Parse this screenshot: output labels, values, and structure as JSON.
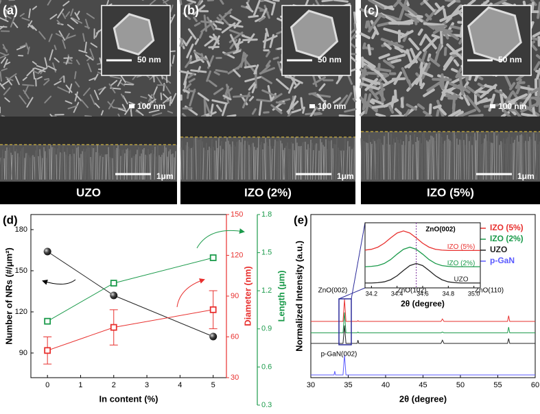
{
  "figure": {
    "panels": [
      {
        "label": "(a)",
        "caption": "UZO",
        "inset_scale": "50 nm",
        "top_scale": "100 nm",
        "side_scale": "1μm"
      },
      {
        "label": "(b)",
        "caption": "IZO (2%)",
        "inset_scale": "50 nm",
        "top_scale": "100 nm",
        "side_scale": "1μm"
      },
      {
        "label": "(c)",
        "caption": "IZO (5%)",
        "inset_scale": "50 nm",
        "top_scale": "100 nm",
        "side_scale": "1μm"
      }
    ]
  },
  "chart_data": [
    {
      "type": "line",
      "label": "(d)",
      "xlabel": "In content (%)",
      "ylabel": "Number of NRs (#/μm²)",
      "y2label": "Diameter (nm)",
      "y3label": "Length (μm)",
      "x": [
        0,
        2,
        5
      ],
      "xlim": [
        -0.5,
        5.4
      ],
      "xticks": [
        0,
        1,
        2,
        3,
        4,
        5
      ],
      "ylim": [
        72,
        191
      ],
      "yticks": [
        90,
        120,
        150,
        180
      ],
      "y2lim": [
        30,
        150
      ],
      "y2ticks": [
        30,
        60,
        90,
        120,
        150
      ],
      "y3lim": [
        0.3,
        1.8
      ],
      "y3ticks": [
        0.3,
        0.6,
        0.9,
        1.2,
        1.5,
        1.8
      ],
      "series": [
        {
          "color": "#222222",
          "marker": "sphere",
          "values": [
            164,
            132,
            102
          ]
        },
        {
          "color": "#e8302e",
          "marker": "square",
          "axis": "y2",
          "values": [
            50,
            67,
            80
          ],
          "errors": [
            10,
            13,
            14
          ]
        },
        {
          "color": "#1a9a4a",
          "marker": "square",
          "axis": "y3",
          "values": [
            0.96,
            1.26,
            1.46
          ]
        }
      ]
    },
    {
      "type": "line",
      "label": "(e)",
      "xlabel": "2θ (degree)",
      "ylabel": "Normalized Intensity (a.u.)",
      "x": [
        30,
        33.1,
        33.2,
        33.3,
        34.3,
        34.5,
        34.7,
        36.2,
        36.3,
        36.4,
        47.4,
        47.6,
        47.8,
        56.3,
        56.45,
        56.6,
        60
      ],
      "xlim": [
        30,
        60
      ],
      "xticks": [
        30,
        35,
        40,
        45,
        50,
        55,
        60
      ],
      "ylim": [
        0,
        10
      ],
      "legend": "upper right",
      "series": [
        {
          "name": "IZO (5%)",
          "color": "#e8302e",
          "values": [
            3.45,
            3.45,
            3.45,
            3.45,
            3.45,
            4.8,
            3.45,
            3.45,
            3.5,
            3.45,
            3.45,
            3.6,
            3.45,
            3.45,
            3.8,
            3.45,
            3.45
          ]
        },
        {
          "name": "IZO (2%)",
          "color": "#1a9a4a",
          "values": [
            2.75,
            2.75,
            2.75,
            2.75,
            2.75,
            4.0,
            2.75,
            2.75,
            2.8,
            2.75,
            2.75,
            2.8,
            2.75,
            2.75,
            3.1,
            2.75,
            2.75
          ]
        },
        {
          "name": "UZO",
          "color": "#222222",
          "values": [
            2.1,
            2.1,
            2.1,
            2.1,
            2.1,
            3.2,
            2.1,
            2.1,
            2.3,
            2.1,
            2.1,
            2.3,
            2.1,
            2.1,
            2.4,
            2.1,
            2.1
          ]
        },
        {
          "name": "p-GaN",
          "color": "#5a5aff",
          "values": [
            0.17,
            0.17,
            0.4,
            0.17,
            0.17,
            1.4,
            0.17,
            0.17,
            0.17,
            0.17,
            0.17,
            0.17,
            0.17,
            0.17,
            0.17,
            0.17,
            0.17
          ]
        }
      ],
      "annotations": [
        "ZnO(002)",
        "ZnO(102)",
        "ZnO(110)",
        "p-GaN(002)"
      ]
    },
    {
      "type": "line",
      "title": "ZnO(002)",
      "xlabel": "2θ (degree)",
      "x": [
        34.15,
        34.2,
        34.25,
        34.3,
        34.35,
        34.4,
        34.45,
        34.5,
        34.55,
        34.6,
        34.65,
        34.7,
        34.75,
        34.8,
        34.85,
        34.9,
        34.95,
        35.0,
        35.05
      ],
      "xlim": [
        34.15,
        35.05
      ],
      "xticks": [
        34.2,
        34.4,
        34.6,
        34.8,
        {
          "value": 35,
          "label": "35.0"
        }
      ],
      "ylim": [
        0,
        4
      ],
      "vline": 34.55,
      "series": [
        {
          "name": "IZO (5%)",
          "color": "#e8302e",
          "values": [
            2.32,
            2.37,
            2.5,
            2.74,
            3.07,
            3.37,
            3.5,
            3.37,
            3.07,
            2.74,
            2.5,
            2.37,
            2.32,
            2.3,
            2.3,
            2.3,
            2.3,
            2.3,
            2.3
          ]
        },
        {
          "name": "IZO (2%)",
          "color": "#1a9a4a",
          "values": [
            1.3,
            1.32,
            1.37,
            1.5,
            1.74,
            2.07,
            2.37,
            2.5,
            2.37,
            2.07,
            1.74,
            1.5,
            1.37,
            1.32,
            1.3,
            1.3,
            1.3,
            1.3,
            1.3
          ]
        },
        {
          "name": "UZO",
          "color": "#222222",
          "values": [
            0.3,
            0.3,
            0.32,
            0.37,
            0.5,
            0.74,
            1.07,
            1.37,
            1.5,
            1.37,
            1.07,
            0.74,
            0.5,
            0.37,
            0.32,
            0.3,
            0.3,
            0.3,
            0.3
          ]
        }
      ]
    }
  ]
}
